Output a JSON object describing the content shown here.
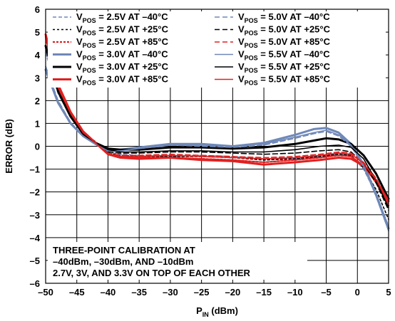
{
  "chart_data": {
    "type": "line",
    "title": "",
    "xlabel": {
      "main": "P",
      "sub": "IN",
      "rest": " (dBm)"
    },
    "ylabel": "ERROR (dB)",
    "xlim": [
      -50,
      5
    ],
    "ylim": [
      -6,
      6
    ],
    "xticks": [
      -50,
      -45,
      -40,
      -35,
      -30,
      -25,
      -20,
      -15,
      -10,
      -5,
      0,
      5
    ],
    "yticks": [
      -6,
      -5,
      -4,
      -3,
      -2,
      -1,
      0,
      1,
      2,
      3,
      4,
      5,
      6
    ],
    "xtick_labels": [
      "–50",
      "–45",
      "–40",
      "–35",
      "–30",
      "–25",
      "–20",
      "–15",
      "–10",
      "–5",
      "0",
      "5"
    ],
    "ytick_labels": [
      "–6",
      "–5",
      "–4",
      "–3",
      "–2",
      "–1",
      "0",
      "1",
      "2",
      "3",
      "4",
      "5",
      "6"
    ],
    "grid": true,
    "legend_position": "top",
    "note": [
      "THREE-POINT CALIBRATION AT",
      "–40dBm, –30dBm, AND –10dBm",
      "2.7V, 3V, AND 3.3V ON TOP OF EACH OTHER"
    ],
    "series": [
      {
        "sub": "POS",
        "name": " = 2.5V AT –40°C",
        "color": "#6f88b8",
        "width": 1.6,
        "dash": "5,3",
        "x": [
          -50,
          -48,
          -46,
          -44,
          -42,
          -40,
          -38,
          -35,
          -30,
          -25,
          -20,
          -15,
          -10,
          -6,
          -3,
          -1,
          1,
          3,
          5
        ],
        "y": [
          4.1,
          2.3,
          1.3,
          0.55,
          0.15,
          -0.25,
          -0.35,
          -0.4,
          -0.45,
          -0.4,
          -0.45,
          -0.55,
          -0.55,
          -0.45,
          -0.35,
          -0.4,
          -1.0,
          -2.1,
          -3.5
        ]
      },
      {
        "sub": "POS",
        "name": " = 2.5V AT +25°C",
        "color": "#000000",
        "width": 1.6,
        "dash": "3,3",
        "x": [
          -50,
          -48,
          -46,
          -44,
          -42,
          -40,
          -38,
          -35,
          -30,
          -25,
          -20,
          -15,
          -10,
          -6,
          -3,
          -1,
          1,
          3,
          5
        ],
        "y": [
          4.35,
          2.5,
          1.4,
          0.6,
          0.2,
          -0.3,
          -0.4,
          -0.45,
          -0.45,
          -0.45,
          -0.5,
          -0.6,
          -0.55,
          -0.45,
          -0.35,
          -0.4,
          -0.95,
          -1.9,
          -3.2
        ]
      },
      {
        "sub": "POS",
        "name": " = 2.5V AT +85°C",
        "color": "#e02020",
        "width": 2.2,
        "dash": "3,2",
        "x": [
          -50,
          -48,
          -46,
          -44,
          -42,
          -40,
          -38,
          -35,
          -30,
          -25,
          -20,
          -15,
          -10,
          -6,
          -3,
          -1,
          1,
          3,
          5
        ],
        "y": [
          4.8,
          2.6,
          1.45,
          0.65,
          0.15,
          -0.35,
          -0.45,
          -0.5,
          -0.5,
          -0.55,
          -0.6,
          -0.7,
          -0.6,
          -0.5,
          -0.4,
          -0.45,
          -0.85,
          -1.6,
          -2.6
        ]
      },
      {
        "sub": "POS",
        "name": " = 3.0V AT –40°C",
        "color": "#6f88b8",
        "width": 3,
        "dash": "",
        "x": [
          -50,
          -48,
          -46,
          -44,
          -42,
          -40,
          -38,
          -35,
          -30,
          -25,
          -20,
          -15,
          -10,
          -7,
          -5,
          -3,
          -1,
          1,
          3,
          5
        ],
        "y": [
          3.35,
          1.9,
          1.0,
          0.45,
          0.1,
          -0.2,
          -0.15,
          -0.05,
          0.1,
          0.1,
          0.0,
          0.15,
          0.5,
          0.75,
          0.8,
          0.6,
          0.1,
          -0.8,
          -2.1,
          -3.6
        ]
      },
      {
        "sub": "POS",
        "name": " = 3.0V AT +25°C",
        "color": "#000000",
        "width": 3,
        "dash": "",
        "x": [
          -50,
          -48,
          -46,
          -44,
          -42,
          -40,
          -38,
          -35,
          -30,
          -25,
          -20,
          -15,
          -10,
          -7,
          -5,
          -3,
          -1,
          1,
          3,
          5
        ],
        "y": [
          4.4,
          2.4,
          1.3,
          0.55,
          0.15,
          -0.1,
          -0.15,
          -0.15,
          -0.05,
          -0.05,
          -0.1,
          -0.05,
          0.1,
          0.25,
          0.35,
          0.3,
          0.1,
          -0.4,
          -1.2,
          -2.3
        ]
      },
      {
        "sub": "POS",
        "name": " = 3.0V AT +85°C",
        "color": "#e02020",
        "width": 3,
        "dash": "",
        "x": [
          -50,
          -48,
          -46,
          -44,
          -42,
          -40,
          -38,
          -35,
          -30,
          -25,
          -20,
          -15,
          -10,
          -6,
          -3,
          -1,
          1,
          3,
          5
        ],
        "y": [
          4.9,
          2.7,
          1.5,
          0.65,
          0.15,
          -0.35,
          -0.5,
          -0.55,
          -0.5,
          -0.6,
          -0.65,
          -0.8,
          -0.7,
          -0.6,
          -0.5,
          -0.55,
          -0.85,
          -1.5,
          -2.4
        ]
      },
      {
        "sub": "POS",
        "name": " = 5.0V AT –40°C",
        "color": "#6f88b8",
        "width": 1.6,
        "dash": "7,4",
        "x": [
          -50,
          -48,
          -46,
          -44,
          -42,
          -40,
          -38,
          -35,
          -30,
          -25,
          -20,
          -15,
          -10,
          -7,
          -5,
          -3,
          -1,
          1,
          3,
          5
        ],
        "y": [
          3.5,
          2.0,
          1.05,
          0.45,
          0.1,
          -0.2,
          -0.2,
          -0.1,
          0.05,
          0.0,
          -0.05,
          0.05,
          0.35,
          0.55,
          0.65,
          0.45,
          0.0,
          -0.9,
          -2.2,
          -3.7
        ]
      },
      {
        "sub": "POS",
        "name": " = 5.0V AT +25°C",
        "color": "#000000",
        "width": 1.6,
        "dash": "7,4",
        "x": [
          -50,
          -48,
          -46,
          -44,
          -42,
          -40,
          -38,
          -35,
          -30,
          -25,
          -20,
          -15,
          -10,
          -6,
          -3,
          -1,
          1,
          3,
          5
        ],
        "y": [
          4.3,
          2.4,
          1.3,
          0.55,
          0.15,
          -0.25,
          -0.3,
          -0.3,
          -0.25,
          -0.25,
          -0.3,
          -0.35,
          -0.3,
          -0.2,
          -0.15,
          -0.25,
          -0.75,
          -1.6,
          -2.8
        ]
      },
      {
        "sub": "POS",
        "name": " = 5.0V AT +85°C",
        "color": "#e02020",
        "width": 1.6,
        "dash": "7,4",
        "x": [
          -50,
          -48,
          -46,
          -44,
          -42,
          -40,
          -38,
          -35,
          -30,
          -25,
          -20,
          -15,
          -10,
          -6,
          -3,
          -1,
          1,
          3,
          5
        ],
        "y": [
          4.7,
          2.55,
          1.45,
          0.6,
          0.15,
          -0.3,
          -0.4,
          -0.4,
          -0.35,
          -0.4,
          -0.45,
          -0.5,
          -0.45,
          -0.35,
          -0.25,
          -0.3,
          -0.7,
          -1.4,
          -2.4
        ]
      },
      {
        "sub": "POS",
        "name": " = 5.5V AT –40°C",
        "color": "#6f88b8",
        "width": 1.6,
        "dash": "",
        "x": [
          -50,
          -48,
          -46,
          -44,
          -42,
          -40,
          -38,
          -35,
          -30,
          -25,
          -20,
          -15,
          -10,
          -7,
          -5,
          -3,
          -1,
          1,
          3,
          5
        ],
        "y": [
          3.4,
          1.95,
          1.0,
          0.45,
          0.1,
          -0.2,
          -0.2,
          -0.1,
          0.05,
          0.05,
          0.0,
          0.1,
          0.4,
          0.6,
          0.7,
          0.5,
          0.05,
          -0.85,
          -2.2,
          -3.7
        ]
      },
      {
        "sub": "POS",
        "name": " = 5.5V AT +25°C",
        "color": "#000000",
        "width": 1.6,
        "dash": "",
        "x": [
          -50,
          -48,
          -46,
          -44,
          -42,
          -40,
          -38,
          -35,
          -30,
          -25,
          -20,
          -15,
          -10,
          -6,
          -3,
          -1,
          1,
          3,
          5
        ],
        "y": [
          4.3,
          2.4,
          1.3,
          0.55,
          0.15,
          -0.15,
          -0.25,
          -0.25,
          -0.2,
          -0.2,
          -0.25,
          -0.25,
          -0.15,
          0.0,
          0.05,
          -0.05,
          -0.55,
          -1.5,
          -2.7
        ]
      },
      {
        "sub": "POS",
        "name": " = 5.5V AT +85°C",
        "color": "#e02020",
        "width": 1.6,
        "dash": "",
        "x": [
          -50,
          -48,
          -46,
          -44,
          -42,
          -40,
          -38,
          -35,
          -30,
          -25,
          -20,
          -15,
          -10,
          -6,
          -3,
          -1,
          1,
          3,
          5
        ],
        "y": [
          4.75,
          2.6,
          1.45,
          0.6,
          0.15,
          -0.35,
          -0.45,
          -0.45,
          -0.4,
          -0.45,
          -0.5,
          -0.55,
          -0.5,
          -0.4,
          -0.3,
          -0.35,
          -0.75,
          -1.45,
          -2.5
        ]
      }
    ]
  }
}
